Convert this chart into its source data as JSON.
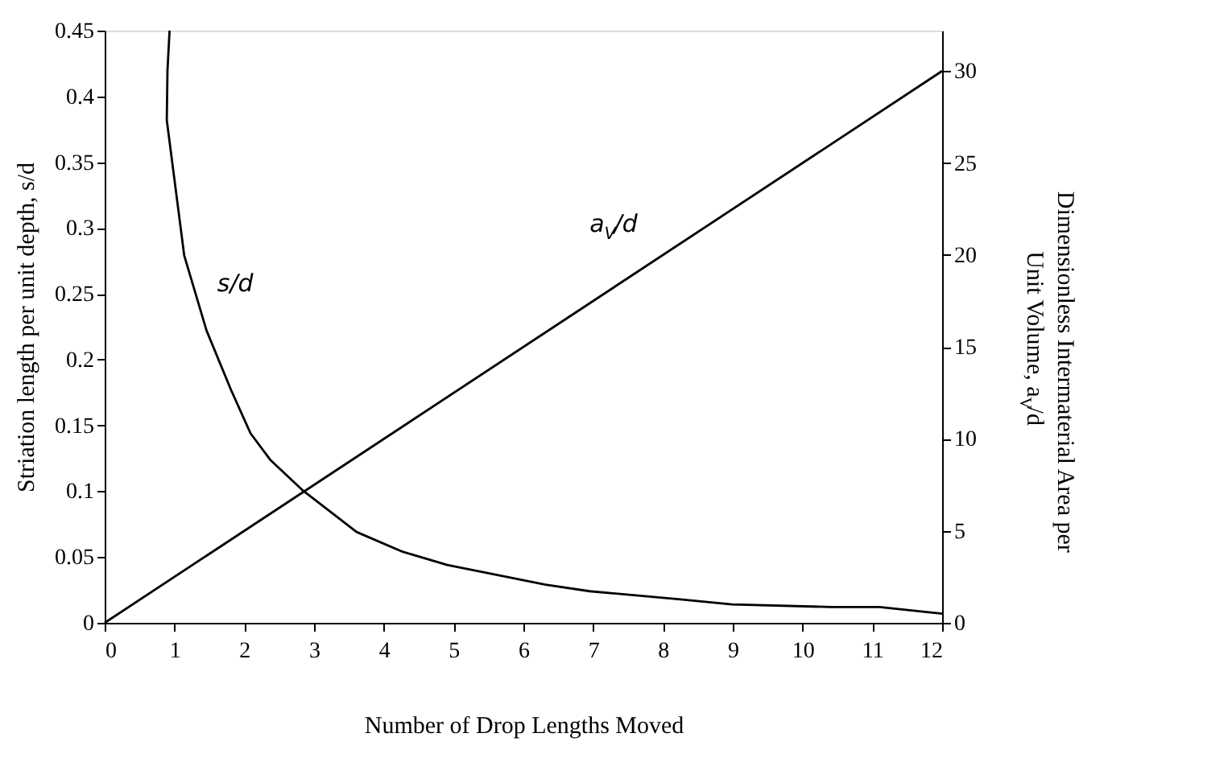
{
  "chart_data": {
    "type": "line",
    "xlabel": "Number of Drop Lengths Moved",
    "ylabel": "Striation length per unit depth, s/d",
    "y2label": "Dimensionless Intermaterial Area per\nUnit Volume, a$_{V}$/d",
    "xlim": [
      0,
      12
    ],
    "xticks": [
      0,
      1,
      2,
      3,
      4,
      5,
      6,
      7,
      8,
      9,
      10,
      11,
      12
    ],
    "ylim": [
      0,
      0.45
    ],
    "yticks": [
      0,
      0.05,
      0.1,
      0.15,
      0.2,
      0.25,
      0.3,
      0.35,
      0.4,
      0.45
    ],
    "y2lim": [
      0,
      32.2
    ],
    "y2ticks": [
      0,
      5,
      10,
      15,
      20,
      25,
      30
    ],
    "grid": false,
    "marker": "none",
    "line_style": "solid",
    "series": [
      {
        "color": "#000000",
        "x": [
          0.93,
          0.9,
          0.89,
          1.14,
          1.46,
          1.81,
          2.09,
          2.37,
          2.83,
          3.61,
          4.27,
          4.91,
          6.32,
          6.95,
          8.22,
          8.99,
          10.4,
          11.1,
          12
        ],
        "values": [
          0.45,
          0.42,
          0.382,
          0.279,
          0.222,
          0.177,
          0.144,
          0.124,
          0.101,
          0.069,
          0.054,
          0.044,
          0.029,
          0.024,
          0.018,
          0.014,
          0.012,
          0.012,
          0.007
        ]
      },
      {
        "color": "#000000",
        "axis": "y2",
        "x": [
          0,
          12
        ],
        "values": [
          0,
          30
        ]
      }
    ],
    "annotations": [
      "s/d",
      "a$_{V}$/d"
    ]
  }
}
